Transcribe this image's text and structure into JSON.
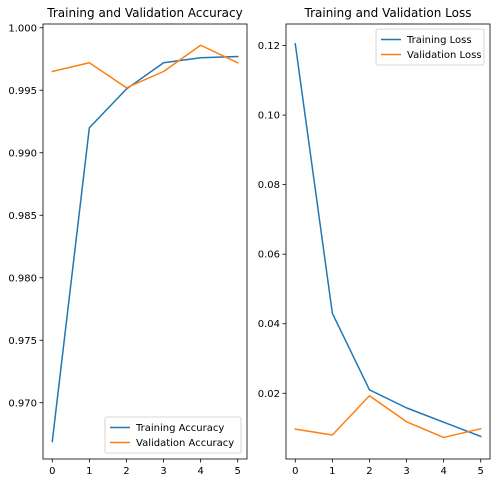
{
  "chart_data": [
    {
      "type": "line",
      "title": "Training and Validation Accuracy",
      "xlabel": "",
      "ylabel": "",
      "x": [
        0,
        1,
        2,
        3,
        4,
        5
      ],
      "xticks": [
        "0",
        "1",
        "2",
        "3",
        "4",
        "5"
      ],
      "xlim": [
        -0.25,
        5.25
      ],
      "ylim": [
        0.9655,
        1.0003
      ],
      "yticks": [
        0.97,
        0.975,
        0.98,
        0.985,
        0.99,
        0.995,
        1.0
      ],
      "ytick_labels": [
        "0.970",
        "0.975",
        "0.980",
        "0.985",
        "0.990",
        "0.995",
        "1.000"
      ],
      "legend": "lower-right",
      "grid": false,
      "series": [
        {
          "name": "Training Accuracy",
          "color": "#1f77b4",
          "values": [
            0.9669,
            0.992,
            0.9951,
            0.9972,
            0.9976,
            0.9977
          ]
        },
        {
          "name": "Validation Accuracy",
          "color": "#ff7f0e",
          "values": [
            0.9965,
            0.9972,
            0.9952,
            0.9965,
            0.9986,
            0.9972
          ]
        }
      ]
    },
    {
      "type": "line",
      "title": "Training and Validation Loss",
      "xlabel": "",
      "ylabel": "",
      "x": [
        0,
        1,
        2,
        3,
        4,
        5
      ],
      "xticks": [
        "0",
        "1",
        "2",
        "3",
        "4",
        "5"
      ],
      "xlim": [
        -0.25,
        5.25
      ],
      "ylim": [
        0.0011,
        0.1262
      ],
      "yticks": [
        0.02,
        0.04,
        0.06,
        0.08,
        0.1,
        0.12
      ],
      "ytick_labels": [
        "0.02",
        "0.04",
        "0.06",
        "0.08",
        "0.10",
        "0.12"
      ],
      "legend": "upper-right",
      "grid": false,
      "series": [
        {
          "name": "Training Loss",
          "color": "#1f77b4",
          "values": [
            0.1205,
            0.043,
            0.021,
            0.0158,
            0.0117,
            0.0076
          ]
        },
        {
          "name": "Validation Loss",
          "color": "#ff7f0e",
          "values": [
            0.0097,
            0.008,
            0.0193,
            0.0118,
            0.0073,
            0.0098
          ]
        }
      ]
    }
  ]
}
